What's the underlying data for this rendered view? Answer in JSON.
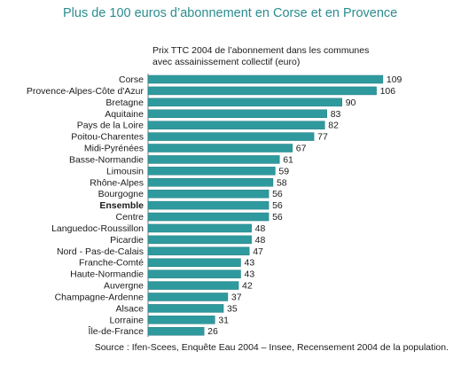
{
  "title": "Plus de 100 euros d’abonnement en Corse et en Provence",
  "subtitle_lines": [
    "Prix TTC 2004 de l’abonnement dans les communes",
    "avec assainissement collectif (euro)"
  ],
  "source": "Source : Ifen-Scees, Enquête Eau 2004 – Insee, Recensement 2004 de la population.",
  "colors": {
    "bar": "#2f9a9e",
    "bar_dark": "#227c80",
    "title": "#2a8c8f"
  },
  "chart_data": {
    "type": "bar",
    "orientation": "horizontal",
    "categories": [
      "Corse",
      "Provence-Alpes-Côte d'Azur",
      "Bretagne",
      "Aquitaine",
      "Pays de la Loire",
      "Poitou-Charentes",
      "Midi-Pyrénées",
      "Basse-Normandie",
      "Limousin",
      "Rhône-Alpes",
      "Bourgogne",
      "Ensemble",
      "Centre",
      "Languedoc-Roussillon",
      "Picardie",
      "Nord - Pas-de-Calais",
      "Franche-Comté",
      "Haute-Normandie",
      "Auvergne",
      "Champagne-Ardenne",
      "Alsace",
      "Lorraine",
      "Île-de-France"
    ],
    "values": [
      109,
      106,
      90,
      83,
      82,
      77,
      67,
      61,
      59,
      58,
      56,
      56,
      56,
      48,
      48,
      47,
      43,
      43,
      42,
      37,
      35,
      31,
      26
    ],
    "highlight": "Ensemble",
    "title": "Prix TTC 2004 de l’abonnement dans les communes avec assainissement collectif (euro)",
    "xlabel": "",
    "ylabel": "",
    "grid": false
  }
}
